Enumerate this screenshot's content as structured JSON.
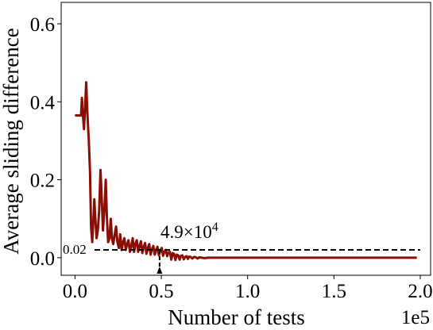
{
  "chart_data": {
    "type": "line",
    "title": "",
    "xlabel": "Number of tests",
    "ylabel": "Average sliding difference",
    "x_multiplier_label": "1e5",
    "xlim": [
      -0.08,
      2.06
    ],
    "ylim": [
      -0.045,
      0.655
    ],
    "xticks": [
      0.0,
      0.5,
      1.0,
      1.5,
      2.0
    ],
    "xtick_labels": [
      "0.0",
      "0.5",
      "1.0",
      "1.5",
      "2.0"
    ],
    "yticks": [
      0.0,
      0.2,
      0.4,
      0.6
    ],
    "ytick_labels": [
      "0.0",
      "0.2",
      "0.4",
      "0.6"
    ],
    "grid": false,
    "line_color": "#8b0e04",
    "series": [
      {
        "x": [
          0.0,
          0.035,
          0.04,
          0.045,
          0.052,
          0.058,
          0.065,
          0.072,
          0.08,
          0.087,
          0.093,
          0.1,
          0.107,
          0.112,
          0.118,
          0.125,
          0.132,
          0.14,
          0.148,
          0.155,
          0.162,
          0.17,
          0.178,
          0.185,
          0.192,
          0.2,
          0.207,
          0.214,
          0.222,
          0.23,
          0.238,
          0.246,
          0.254,
          0.262,
          0.27,
          0.278,
          0.286,
          0.294,
          0.302,
          0.31,
          0.318,
          0.326,
          0.334,
          0.342,
          0.35,
          0.358,
          0.366,
          0.374,
          0.382,
          0.39,
          0.398,
          0.406,
          0.414,
          0.422,
          0.43,
          0.438,
          0.446,
          0.454,
          0.462,
          0.47,
          0.478,
          0.486,
          0.494,
          0.502,
          0.51,
          0.518,
          0.526,
          0.534,
          0.542,
          0.55,
          0.558,
          0.566,
          0.574,
          0.582,
          0.59,
          0.598,
          0.606,
          0.614,
          0.622,
          0.63,
          0.638,
          0.646,
          0.654,
          0.662,
          0.67,
          0.68,
          0.69,
          0.7,
          0.71,
          0.72,
          0.735,
          0.75,
          0.77,
          0.8,
          0.85,
          0.9,
          1.0,
          1.2,
          1.4,
          1.6,
          1.8,
          1.98
        ],
        "y": [
          0.365,
          0.365,
          0.41,
          0.37,
          0.33,
          0.38,
          0.45,
          0.37,
          0.3,
          0.22,
          0.08,
          0.04,
          0.1,
          0.15,
          0.1,
          0.05,
          0.07,
          0.12,
          0.225,
          0.15,
          0.07,
          0.12,
          0.2,
          0.1,
          0.04,
          0.05,
          0.1,
          0.05,
          0.035,
          0.06,
          0.08,
          0.04,
          0.025,
          0.06,
          0.02,
          0.04,
          0.05,
          0.02,
          0.035,
          0.045,
          0.015,
          0.03,
          0.05,
          0.015,
          0.035,
          0.045,
          0.015,
          0.03,
          0.042,
          0.012,
          0.028,
          0.038,
          0.01,
          0.025,
          0.035,
          0.008,
          0.022,
          0.03,
          0.008,
          0.02,
          0.028,
          0.006,
          0.018,
          0.025,
          0.005,
          0.016,
          0.02,
          0.004,
          0.014,
          0.015,
          -0.005,
          0.012,
          0.01,
          -0.006,
          0.008,
          0.006,
          -0.005,
          0.005,
          0.006,
          -0.004,
          0.002,
          0.004,
          -0.003,
          0.003,
          0.002,
          -0.002,
          0.002,
          0.001,
          -0.002,
          0.001,
          0.0,
          -0.001,
          0.0,
          0.0,
          0.0,
          0.0,
          0.0,
          0.0,
          0.0,
          0.0,
          0.0,
          0.0
        ]
      }
    ],
    "threshold": {
      "y": 0.02,
      "label": "0.02"
    },
    "marker": {
      "x": 0.49,
      "label": "4.9",
      "times": "×",
      "base": "10",
      "exponent": "4"
    }
  }
}
